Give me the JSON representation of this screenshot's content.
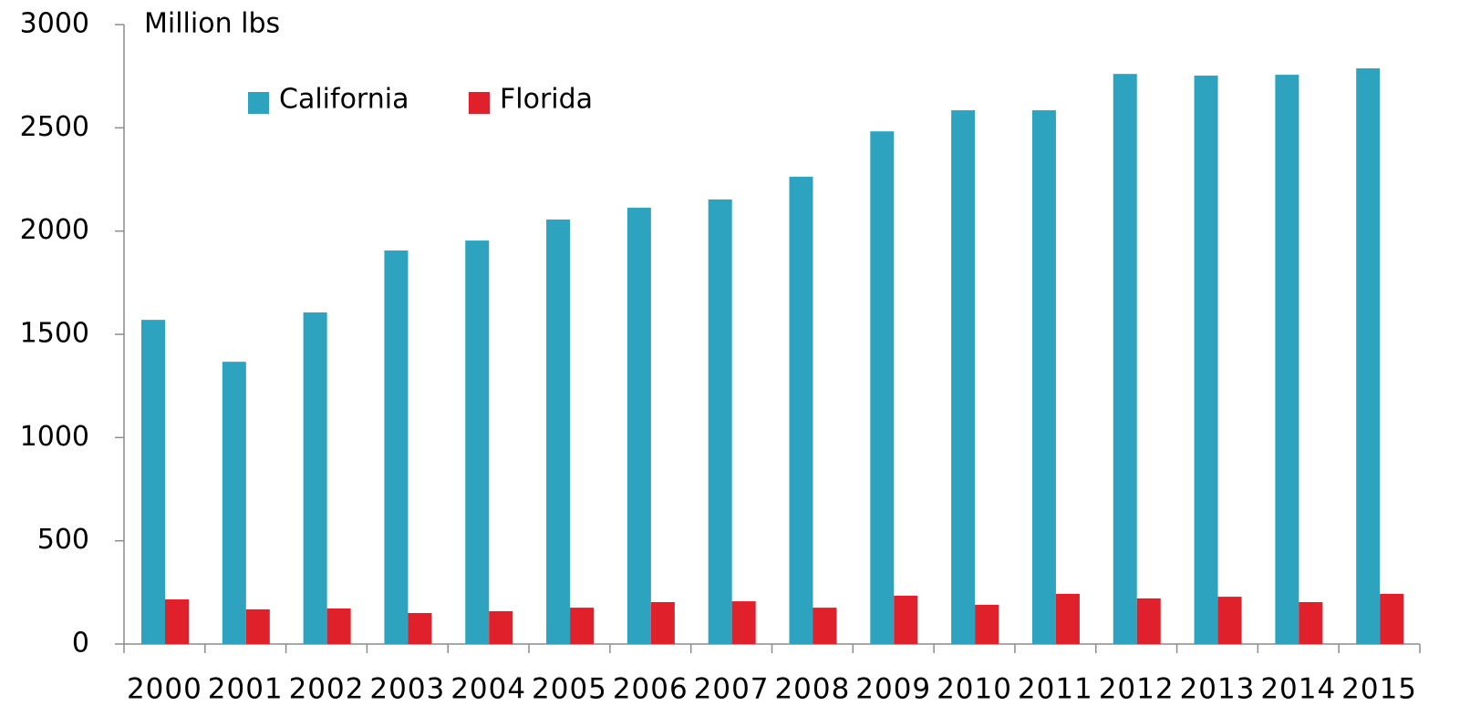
{
  "chart_data": {
    "type": "bar",
    "title": "Million lbs",
    "categories": [
      "2000",
      "2001",
      "2002",
      "2003",
      "2004",
      "2005",
      "2006",
      "2007",
      "2008",
      "2009",
      "2010",
      "2011",
      "2012",
      "2013",
      "2014",
      "2015"
    ],
    "series": [
      {
        "name": "California",
        "color": "#2ea3c0",
        "values": [
          1570,
          1367,
          1606,
          1906,
          1954,
          2056,
          2113,
          2153,
          2263,
          2483,
          2585,
          2585,
          2761,
          2753,
          2757,
          2788
        ]
      },
      {
        "name": "Florida",
        "color": "#e0202b",
        "values": [
          216,
          168,
          172,
          150,
          159,
          176,
          203,
          207,
          176,
          234,
          190,
          243,
          221,
          229,
          203,
          243
        ]
      }
    ],
    "ylim": [
      0,
      3000
    ],
    "yticks": [
      0,
      500,
      1000,
      1500,
      2000,
      2500,
      3000
    ],
    "grid": false,
    "legend": "top-left"
  }
}
